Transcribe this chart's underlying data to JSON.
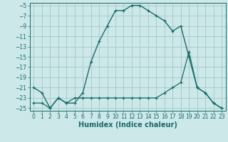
{
  "xlabel": "Humidex (Indice chaleur)",
  "bg_color": "#cce8e8",
  "grid_color": "#aacccc",
  "line_color": "#1a6b6b",
  "xlim": [
    -0.5,
    23.5
  ],
  "ylim": [
    -25.5,
    -4.5
  ],
  "xticks": [
    0,
    1,
    2,
    3,
    4,
    5,
    6,
    7,
    8,
    9,
    10,
    11,
    12,
    13,
    14,
    15,
    16,
    17,
    18,
    19,
    20,
    21,
    22,
    23
  ],
  "yticks": [
    -25,
    -23,
    -21,
    -19,
    -17,
    -15,
    -13,
    -11,
    -9,
    -7,
    -5
  ],
  "line1_x": [
    0,
    1,
    2,
    3,
    4,
    5,
    6,
    7,
    8,
    9,
    10,
    11,
    12,
    13,
    14,
    15,
    16,
    17,
    18,
    19,
    20,
    21,
    22,
    23
  ],
  "line1_y": [
    -21,
    -22,
    -25,
    -23,
    -24,
    -24,
    -22,
    -16,
    -12,
    -9,
    -6,
    -6,
    -5,
    -5,
    -6,
    -7,
    -8,
    -10,
    -9,
    -15,
    -21,
    -22,
    -24,
    -25
  ],
  "line2_x": [
    0,
    1,
    2,
    3,
    4,
    5,
    6,
    7,
    8,
    9,
    10,
    11,
    12,
    13,
    14,
    15,
    16,
    17,
    18,
    19,
    20,
    21,
    22,
    23
  ],
  "line2_y": [
    -24,
    -24,
    -25,
    -23,
    -24,
    -23,
    -23,
    -23,
    -23,
    -23,
    -23,
    -23,
    -23,
    -23,
    -23,
    -23,
    -22,
    -21,
    -20,
    -14,
    -21,
    -22,
    -24,
    -25
  ],
  "tick_fontsize": 5.5,
  "label_fontsize": 7.0
}
